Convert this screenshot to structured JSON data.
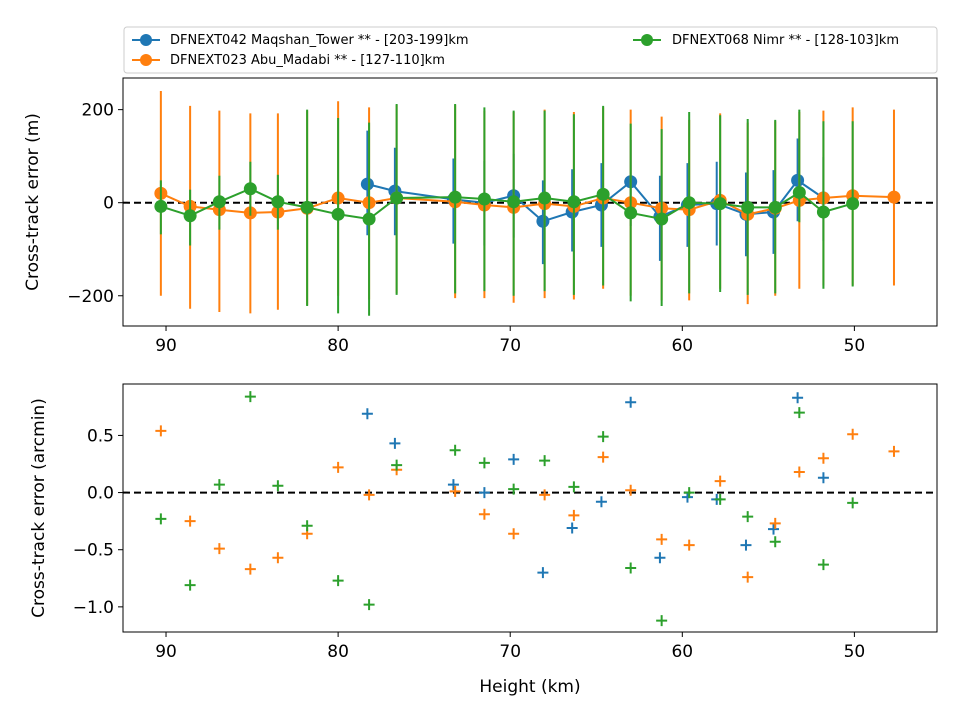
{
  "legend": {
    "entries": [
      {
        "label": "DFNEXT042 Maqshan_Tower **  - [203-199]km",
        "color": "#1f77b4"
      },
      {
        "label": "DFNEXT023 Abu_Madabi **  - [127-110]km",
        "color": "#ff7f0e"
      },
      {
        "label": "DFNEXT068 Nimr **  - [128-103]km",
        "color": "#2ca02c"
      }
    ]
  },
  "chart_data": [
    {
      "type": "line",
      "xlabel": "",
      "ylabel": "Cross-track error (m)",
      "xlim": [
        92.5,
        45.2
      ],
      "ylim": [
        -265,
        268
      ],
      "xticks": [
        90,
        80,
        70,
        60,
        50
      ],
      "yticks": [
        200,
        0,
        -200
      ],
      "ytick_labels": [
        "200",
        "0",
        "−200"
      ],
      "reference_line": 0,
      "series": [
        {
          "name": "DFNEXT042 Maqshan_Tower **  - [203-199]km",
          "color": "#1f77b4",
          "points": [
            {
              "x": 78.3,
              "y": 40,
              "lo": -70,
              "hi": 155
            },
            {
              "x": 76.7,
              "y": 25,
              "lo": -70,
              "hi": 118
            },
            {
              "x": 73.3,
              "y": 7,
              "lo": -88,
              "hi": 95
            },
            {
              "x": 71.5,
              "y": 0,
              "lo": -92,
              "hi": 90
            },
            {
              "x": 69.8,
              "y": 15,
              "lo": -75,
              "hi": 105
            },
            {
              "x": 68.1,
              "y": -40,
              "lo": -132,
              "hi": 48
            },
            {
              "x": 66.4,
              "y": -20,
              "lo": -105,
              "hi": 72
            },
            {
              "x": 64.7,
              "y": -5,
              "lo": -95,
              "hi": 85
            },
            {
              "x": 63.0,
              "y": 45,
              "lo": -50,
              "hi": 135
            },
            {
              "x": 61.3,
              "y": -30,
              "lo": -125,
              "hi": 58
            },
            {
              "x": 59.7,
              "y": -5,
              "lo": -95,
              "hi": 85
            },
            {
              "x": 58.0,
              "y": -2,
              "lo": -92,
              "hi": 88
            },
            {
              "x": 56.3,
              "y": -25,
              "lo": -115,
              "hi": 65
            },
            {
              "x": 54.7,
              "y": -20,
              "lo": -110,
              "hi": 70
            },
            {
              "x": 53.3,
              "y": 48,
              "lo": -40,
              "hi": 138
            },
            {
              "x": 51.8,
              "y": 10,
              "lo": -82,
              "hi": 98
            }
          ]
        },
        {
          "name": "DFNEXT023 Abu_Madabi **  - [127-110]km",
          "color": "#ff7f0e",
          "points": [
            {
              "x": 90.3,
              "y": 20,
              "lo": -200,
              "hi": 240
            },
            {
              "x": 88.6,
              "y": -8,
              "lo": -228,
              "hi": 208
            },
            {
              "x": 86.9,
              "y": -15,
              "lo": -235,
              "hi": 198
            },
            {
              "x": 85.1,
              "y": -22,
              "lo": -238,
              "hi": 192
            },
            {
              "x": 83.5,
              "y": -20,
              "lo": -230,
              "hi": 192
            },
            {
              "x": 81.8,
              "y": -12,
              "lo": -220,
              "hi": 198
            },
            {
              "x": 80.0,
              "y": 10,
              "lo": -200,
              "hi": 218
            },
            {
              "x": 78.2,
              "y": 0,
              "lo": -208,
              "hi": 205
            },
            {
              "x": 76.6,
              "y": 10,
              "lo": -195,
              "hi": 210
            },
            {
              "x": 73.2,
              "y": 2,
              "lo": -205,
              "hi": 210
            },
            {
              "x": 71.5,
              "y": -5,
              "lo": -205,
              "hi": 198
            },
            {
              "x": 69.8,
              "y": -10,
              "lo": -215,
              "hi": 195
            },
            {
              "x": 68.0,
              "y": -2,
              "lo": -205,
              "hi": 200
            },
            {
              "x": 66.3,
              "y": -8,
              "lo": -208,
              "hi": 195
            },
            {
              "x": 64.6,
              "y": 10,
              "lo": -185,
              "hi": 205
            },
            {
              "x": 63.0,
              "y": 0,
              "lo": -200,
              "hi": 200
            },
            {
              "x": 61.2,
              "y": -12,
              "lo": -210,
              "hi": 185
            },
            {
              "x": 59.6,
              "y": -15,
              "lo": -210,
              "hi": 178
            },
            {
              "x": 57.8,
              "y": 5,
              "lo": -185,
              "hi": 192
            },
            {
              "x": 56.2,
              "y": -25,
              "lo": -218,
              "hi": 172
            },
            {
              "x": 54.6,
              "y": -12,
              "lo": -200,
              "hi": 175
            },
            {
              "x": 53.2,
              "y": 5,
              "lo": -185,
              "hi": 195
            },
            {
              "x": 51.8,
              "y": 10,
              "lo": -178,
              "hi": 198
            },
            {
              "x": 50.1,
              "y": 15,
              "lo": -178,
              "hi": 205
            },
            {
              "x": 47.7,
              "y": 12,
              "lo": -178,
              "hi": 200
            }
          ]
        },
        {
          "name": "DFNEXT068 Nimr **  - [128-103]km",
          "color": "#2ca02c",
          "points": [
            {
              "x": 90.3,
              "y": -8,
              "lo": -68,
              "hi": 48
            },
            {
              "x": 88.6,
              "y": -28,
              "lo": -92,
              "hi": 28
            },
            {
              "x": 86.9,
              "y": 2,
              "lo": -58,
              "hi": 58
            },
            {
              "x": 85.1,
              "y": 30,
              "lo": -28,
              "hi": 88
            },
            {
              "x": 83.5,
              "y": 2,
              "lo": -58,
              "hi": 60
            },
            {
              "x": 81.8,
              "y": -10,
              "lo": -222,
              "hi": 200
            },
            {
              "x": 80.0,
              "y": -25,
              "lo": -238,
              "hi": 182
            },
            {
              "x": 78.2,
              "y": -35,
              "lo": -243,
              "hi": 172
            },
            {
              "x": 76.6,
              "y": 10,
              "lo": -198,
              "hi": 212
            },
            {
              "x": 73.2,
              "y": 12,
              "lo": -195,
              "hi": 212
            },
            {
              "x": 71.5,
              "y": 8,
              "lo": -190,
              "hi": 205
            },
            {
              "x": 69.8,
              "y": 2,
              "lo": -200,
              "hi": 198
            },
            {
              "x": 68.0,
              "y": 10,
              "lo": -190,
              "hi": 198
            },
            {
              "x": 66.3,
              "y": 2,
              "lo": -198,
              "hi": 190
            },
            {
              "x": 64.6,
              "y": 18,
              "lo": -178,
              "hi": 208
            },
            {
              "x": 63.0,
              "y": -22,
              "lo": -212,
              "hi": 170
            },
            {
              "x": 61.2,
              "y": -35,
              "lo": -222,
              "hi": 158
            },
            {
              "x": 59.6,
              "y": 0,
              "lo": -195,
              "hi": 195
            },
            {
              "x": 57.8,
              "y": -2,
              "lo": -192,
              "hi": 188
            },
            {
              "x": 56.2,
              "y": -10,
              "lo": -198,
              "hi": 180
            },
            {
              "x": 54.6,
              "y": -10,
              "lo": -195,
              "hi": 178
            },
            {
              "x": 53.2,
              "y": 22,
              "lo": -42,
              "hi": 200
            },
            {
              "x": 51.8,
              "y": -20,
              "lo": -185,
              "hi": 175
            },
            {
              "x": 50.1,
              "y": -2,
              "lo": -180,
              "hi": 175
            }
          ]
        }
      ]
    },
    {
      "type": "scatter",
      "xlabel": "Height (km)",
      "ylabel": "Cross-track error (arcmin)",
      "xlim": [
        92.5,
        45.2
      ],
      "ylim": [
        -1.22,
        0.95
      ],
      "xticks": [
        90,
        80,
        70,
        60,
        50
      ],
      "yticks": [
        0.5,
        0.0,
        -0.5,
        -1.0
      ],
      "ytick_labels": [
        "0.5",
        "0.0",
        "−0.5",
        "−1.0"
      ],
      "reference_line": 0,
      "series": [
        {
          "name": "DFNEXT042 Maqshan_Tower **  - [203-199]km",
          "color": "#1f77b4",
          "points": [
            {
              "x": 78.3,
              "y": 0.69
            },
            {
              "x": 76.7,
              "y": 0.43
            },
            {
              "x": 73.3,
              "y": 0.07
            },
            {
              "x": 71.5,
              "y": 0.0
            },
            {
              "x": 69.8,
              "y": 0.29
            },
            {
              "x": 68.1,
              "y": -0.7
            },
            {
              "x": 66.4,
              "y": -0.31
            },
            {
              "x": 64.7,
              "y": -0.08
            },
            {
              "x": 63.0,
              "y": 0.79
            },
            {
              "x": 61.3,
              "y": -0.57
            },
            {
              "x": 59.7,
              "y": -0.04
            },
            {
              "x": 58.0,
              "y": -0.06
            },
            {
              "x": 56.3,
              "y": -0.46
            },
            {
              "x": 54.7,
              "y": -0.32
            },
            {
              "x": 53.3,
              "y": 0.83
            },
            {
              "x": 51.8,
              "y": 0.13
            }
          ]
        },
        {
          "name": "DFNEXT023 Abu_Madabi **  - [127-110]km",
          "color": "#ff7f0e",
          "points": [
            {
              "x": 90.3,
              "y": 0.54
            },
            {
              "x": 88.6,
              "y": -0.25
            },
            {
              "x": 86.9,
              "y": -0.49
            },
            {
              "x": 85.1,
              "y": -0.67
            },
            {
              "x": 83.5,
              "y": -0.57
            },
            {
              "x": 81.8,
              "y": -0.36
            },
            {
              "x": 80.0,
              "y": 0.22
            },
            {
              "x": 78.2,
              "y": -0.02
            },
            {
              "x": 76.6,
              "y": 0.2
            },
            {
              "x": 73.2,
              "y": 0.01
            },
            {
              "x": 71.5,
              "y": -0.19
            },
            {
              "x": 69.8,
              "y": -0.36
            },
            {
              "x": 68.0,
              "y": -0.02
            },
            {
              "x": 66.3,
              "y": -0.2
            },
            {
              "x": 64.6,
              "y": 0.31
            },
            {
              "x": 63.0,
              "y": 0.02
            },
            {
              "x": 61.2,
              "y": -0.41
            },
            {
              "x": 59.6,
              "y": -0.46
            },
            {
              "x": 57.8,
              "y": 0.1
            },
            {
              "x": 56.2,
              "y": -0.74
            },
            {
              "x": 54.6,
              "y": -0.27
            },
            {
              "x": 53.2,
              "y": 0.18
            },
            {
              "x": 51.8,
              "y": 0.3
            },
            {
              "x": 50.1,
              "y": 0.51
            },
            {
              "x": 47.7,
              "y": 0.36
            }
          ]
        },
        {
          "name": "DFNEXT068 Nimr **  - [128-103]km",
          "color": "#2ca02c",
          "points": [
            {
              "x": 90.3,
              "y": -0.23
            },
            {
              "x": 88.6,
              "y": -0.81
            },
            {
              "x": 86.9,
              "y": 0.07
            },
            {
              "x": 85.1,
              "y": 0.84
            },
            {
              "x": 83.5,
              "y": 0.06
            },
            {
              "x": 81.8,
              "y": -0.29
            },
            {
              "x": 80.0,
              "y": -0.77
            },
            {
              "x": 78.2,
              "y": -0.98
            },
            {
              "x": 76.6,
              "y": 0.24
            },
            {
              "x": 73.2,
              "y": 0.37
            },
            {
              "x": 71.5,
              "y": 0.26
            },
            {
              "x": 69.8,
              "y": 0.03
            },
            {
              "x": 68.0,
              "y": 0.28
            },
            {
              "x": 66.3,
              "y": 0.05
            },
            {
              "x": 64.6,
              "y": 0.49
            },
            {
              "x": 63.0,
              "y": -0.66
            },
            {
              "x": 61.2,
              "y": -1.12
            },
            {
              "x": 59.6,
              "y": 0.0
            },
            {
              "x": 57.8,
              "y": -0.06
            },
            {
              "x": 56.2,
              "y": -0.21
            },
            {
              "x": 54.6,
              "y": -0.43
            },
            {
              "x": 53.2,
              "y": 0.7
            },
            {
              "x": 51.8,
              "y": -0.63
            },
            {
              "x": 50.1,
              "y": -0.09
            }
          ]
        }
      ]
    }
  ]
}
